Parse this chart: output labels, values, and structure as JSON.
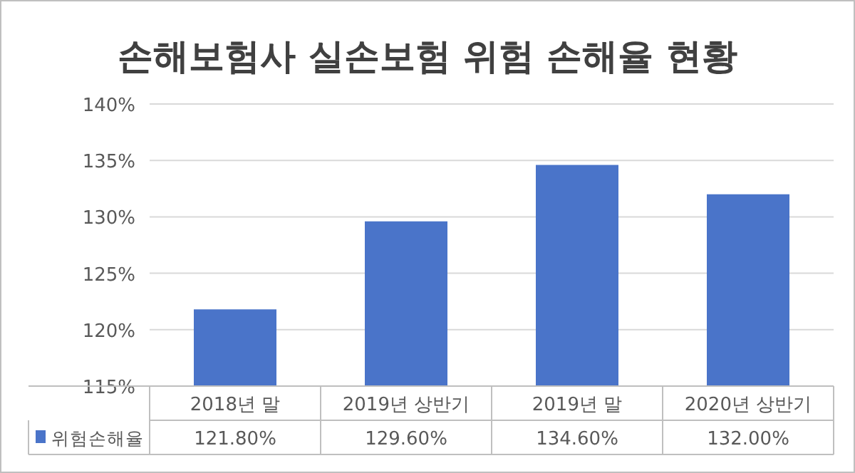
{
  "chart_data": {
    "type": "bar",
    "title": "손해보험사 실손보험 위험 손해율 현황",
    "categories": [
      "2018년 말",
      "2019년 상반기",
      "2019년 말",
      "2020년 상반기"
    ],
    "series": [
      {
        "name": "위험손해율",
        "color": "#4a74c9",
        "values": [
          121.8,
          129.6,
          134.6,
          132.0
        ],
        "value_labels": [
          "121.80%",
          "129.60%",
          "134.60%",
          "132.00%"
        ]
      }
    ],
    "ylim": [
      115,
      140
    ],
    "yticks": [
      {
        "value": 115,
        "label": "115%"
      },
      {
        "value": 120,
        "label": "120%"
      },
      {
        "value": 125,
        "label": "125%"
      },
      {
        "value": 130,
        "label": "130%"
      },
      {
        "value": 135,
        "label": "135%"
      },
      {
        "value": 140,
        "label": "140%"
      }
    ],
    "grid": "y",
    "legend": "bottom"
  }
}
